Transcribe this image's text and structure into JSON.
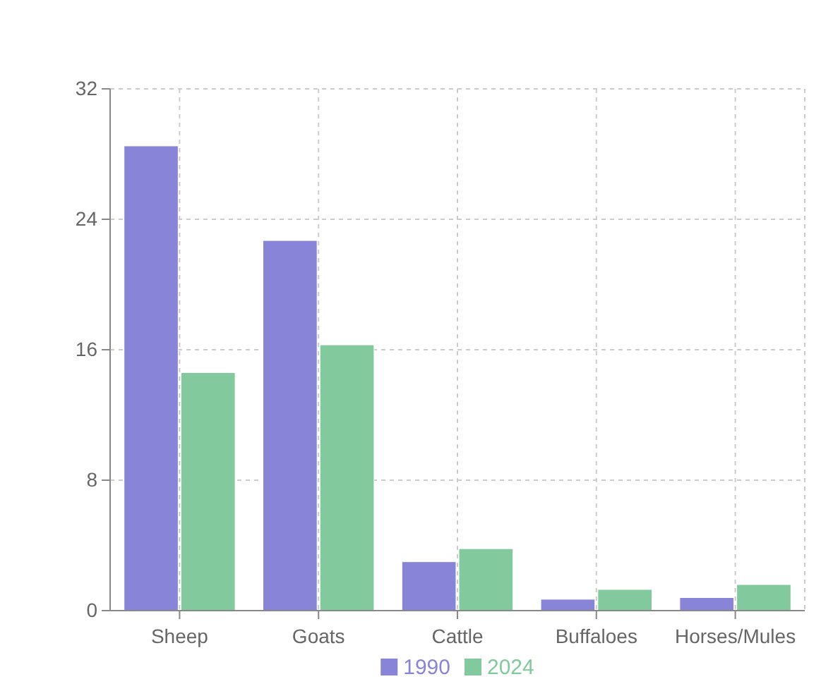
{
  "chart_data": {
    "type": "bar",
    "categories": [
      "Sheep",
      "Goats",
      "Cattle",
      "Buffaloes",
      "Horses/Mules"
    ],
    "series": [
      {
        "name": "1990",
        "color": "#8884d8",
        "values": [
          28.5,
          22.7,
          3.0,
          0.7,
          0.8
        ]
      },
      {
        "name": "2024",
        "color": "#82ca9d",
        "values": [
          14.6,
          16.3,
          3.8,
          1.3,
          1.6
        ]
      }
    ],
    "ylim": [
      0,
      32
    ],
    "yticks": [
      0,
      8,
      16,
      24,
      32
    ],
    "grid": true,
    "legend": "bottom"
  }
}
